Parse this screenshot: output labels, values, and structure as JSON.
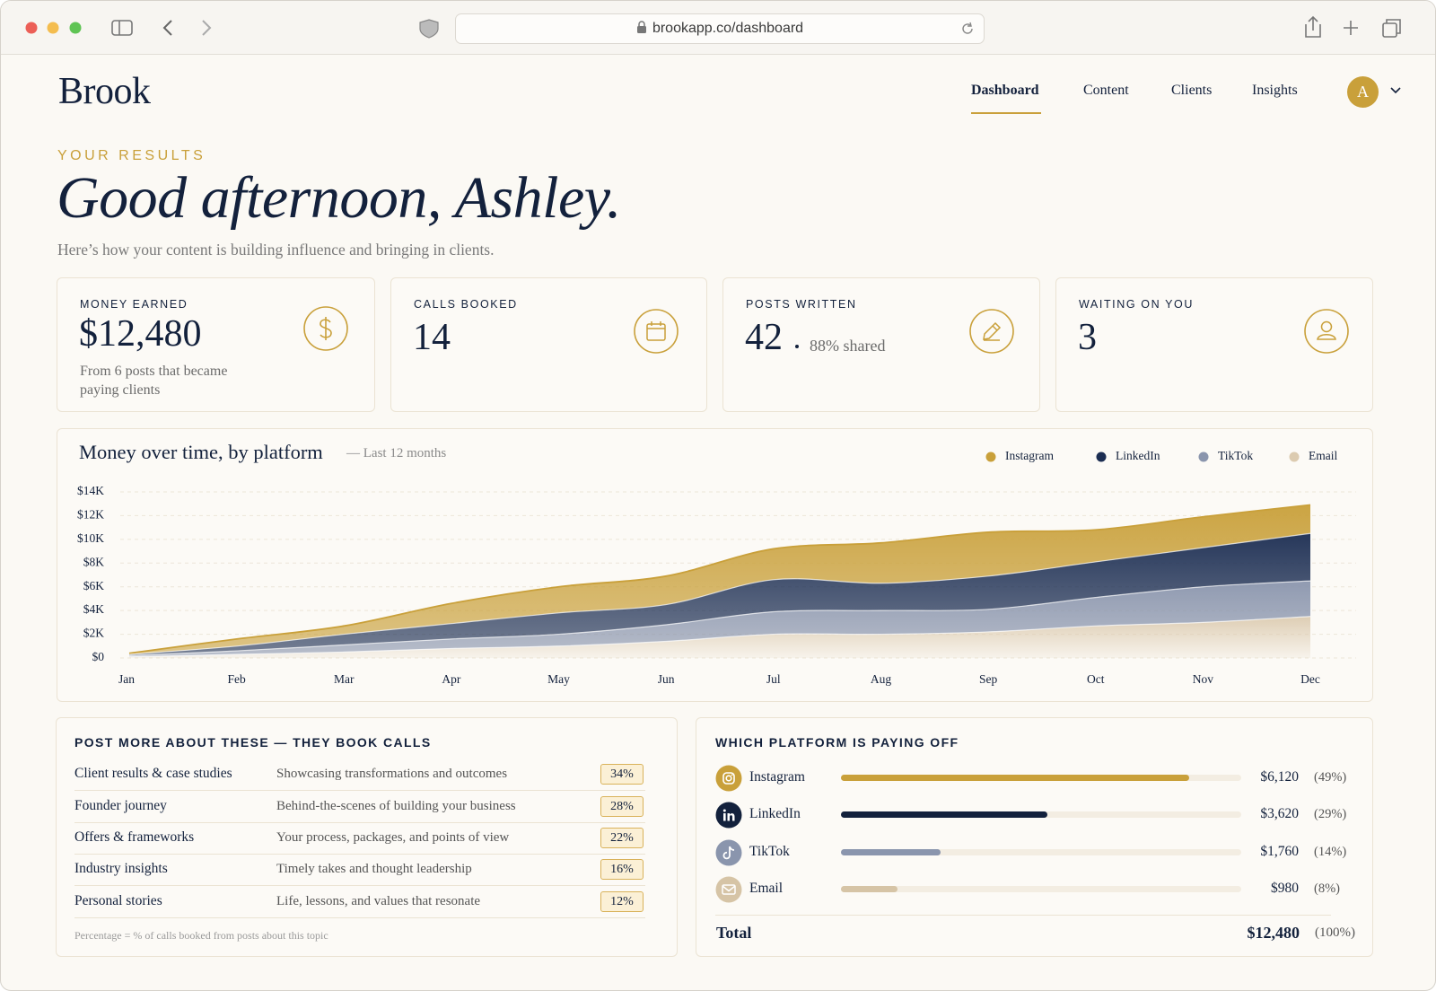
{
  "browser": {
    "url": "brookapp.co/dashboard"
  },
  "nav": {
    "brand": "Brook",
    "links": [
      "Dashboard",
      "Content",
      "Clients",
      "Insights"
    ],
    "avatar": "A"
  },
  "header": {
    "eyebrow": "YOUR RESULTS",
    "title": "Good afternoon, Ashley.",
    "subtitle": "Here’s how your content is building influence and bringing in clients."
  },
  "stats": [
    {
      "label": "MONEY EARNED",
      "value": "$12,480",
      "note": "From 6 posts that became paying clients"
    },
    {
      "label": "CALLS BOOKED",
      "value": "14"
    },
    {
      "label": "POSTS WRITTEN",
      "value": "42",
      "note": "88% shared"
    },
    {
      "label": "WAITING ON YOU",
      "value": "3"
    }
  ],
  "chart_data": {
    "type": "area",
    "stacked": true,
    "title": "Money over time, by platform",
    "subtitle": "— Last 12 months",
    "categories": [
      "Jan",
      "Feb",
      "Mar",
      "Apr",
      "May",
      "Jun",
      "Jul",
      "Aug",
      "Sep",
      "Oct",
      "Nov",
      "Dec"
    ],
    "series": [
      {
        "name": "Instagram",
        "color": "#c9a03a",
        "values": [
          100,
          600,
          700,
          1700,
          2200,
          2400,
          2600,
          3400,
          3700,
          2700,
          2600,
          2400
        ]
      },
      {
        "name": "LinkedIn",
        "color": "#1b2d52",
        "values": [
          100,
          400,
          900,
          1300,
          1800,
          1700,
          2700,
          2300,
          2800,
          3000,
          3300,
          4000
        ]
      },
      {
        "name": "TikTok",
        "color": "#8a95ad",
        "values": [
          100,
          300,
          600,
          800,
          1000,
          1400,
          1900,
          2000,
          1900,
          2400,
          3000,
          3000
        ]
      },
      {
        "name": "Email",
        "color": "#dccbb0",
        "values": [
          100,
          300,
          500,
          800,
          1000,
          1400,
          2000,
          2000,
          2200,
          2700,
          3000,
          3500
        ]
      }
    ],
    "ylim": [
      0,
      14000
    ],
    "yticks": [
      {
        "value": 0,
        "label": "$0"
      },
      {
        "value": 2000,
        "label": "$2K"
      },
      {
        "value": 4000,
        "label": "$4K"
      },
      {
        "value": 6000,
        "label": "$6K"
      },
      {
        "value": 8000,
        "label": "$8K"
      },
      {
        "value": 10000,
        "label": "$10K"
      },
      {
        "value": 12000,
        "label": "$12K"
      },
      {
        "value": 14000,
        "label": "$14K"
      }
    ],
    "grid": true,
    "legend": "top-right"
  },
  "topics": {
    "title": "POST MORE ABOUT THESE — THEY BOOK CALLS",
    "rows": [
      {
        "topic": "Client results & case studies",
        "description": "Showcasing transformations and outcomes",
        "share": "34%"
      },
      {
        "topic": "Founder journey",
        "description": "Behind-the-scenes of building your business",
        "share": "28%"
      },
      {
        "topic": "Offers & frameworks",
        "description": "Your process, packages, and points of view",
        "share": "22%"
      },
      {
        "topic": "Industry insights",
        "description": "Timely takes and thought leadership",
        "share": "16%"
      },
      {
        "topic": "Personal stories",
        "description": "Life, lessons, and values that resonate",
        "share": "12%"
      }
    ],
    "footnote": "Percentage = % of calls booked from posts about this topic"
  },
  "platforms": {
    "title": "WHICH PLATFORM IS PAYING OFF",
    "rows": [
      {
        "name": "Instagram",
        "color": "#c9a03a",
        "amount": 6120,
        "amount_label": "$6,120",
        "share": 49,
        "share_label": "(49%)"
      },
      {
        "name": "LinkedIn",
        "color": "#13213c",
        "amount": 3620,
        "amount_label": "$3,620",
        "share": 29,
        "share_label": "(29%)"
      },
      {
        "name": "TikTok",
        "color": "#8a95ad",
        "amount": 1760,
        "amount_label": "$1,760",
        "share": 14,
        "share_label": "(14%)"
      },
      {
        "name": "Email",
        "color": "#d6c4a6",
        "amount": 980,
        "amount_label": "$980",
        "share": 8,
        "share_label": "(8%)"
      }
    ],
    "total": {
      "label": "Total",
      "amount": "$12,480",
      "share": "(100%)"
    }
  }
}
